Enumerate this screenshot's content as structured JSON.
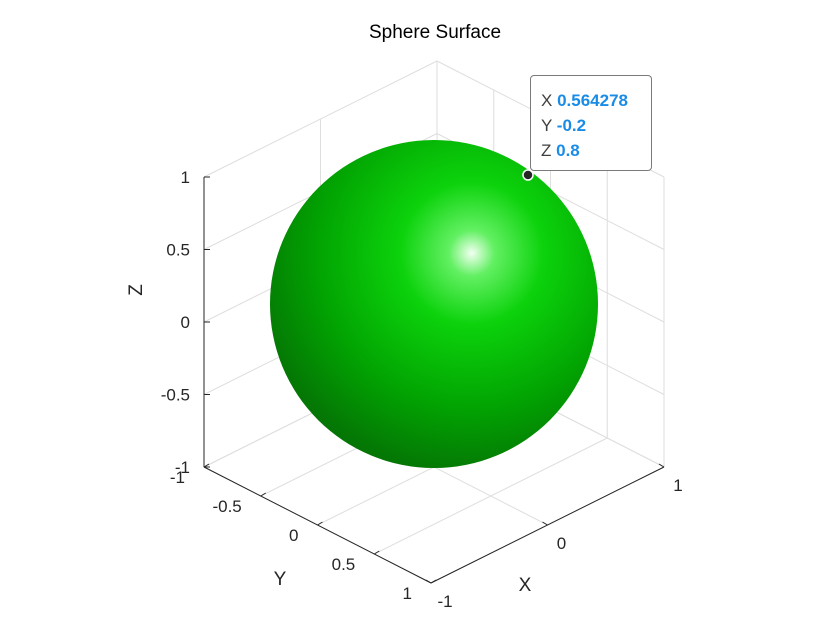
{
  "chart_data": {
    "type": "surface",
    "title": "Sphere Surface",
    "xlabel": "X",
    "ylabel": "Y",
    "zlabel": "Z",
    "xlim": [
      -1,
      1
    ],
    "ylim": [
      -1,
      1
    ],
    "zlim": [
      -1,
      1
    ],
    "x_ticks": [
      "-1",
      "0",
      "1"
    ],
    "y_ticks": [
      "-1",
      "-0.5",
      "0",
      "0.5",
      "1"
    ],
    "z_ticks": [
      "-1",
      "-0.5",
      "0",
      "0.5",
      "1"
    ],
    "surface": {
      "shape": "unit sphere",
      "radius": 1,
      "center": [
        0,
        0,
        0
      ],
      "color": "#00bf00"
    },
    "grid": true,
    "datatip": {
      "x_key": "X",
      "x_value": "0.564278",
      "y_key": "Y",
      "y_value": "-0.2",
      "z_key": "Z",
      "z_value": "0.8"
    }
  }
}
